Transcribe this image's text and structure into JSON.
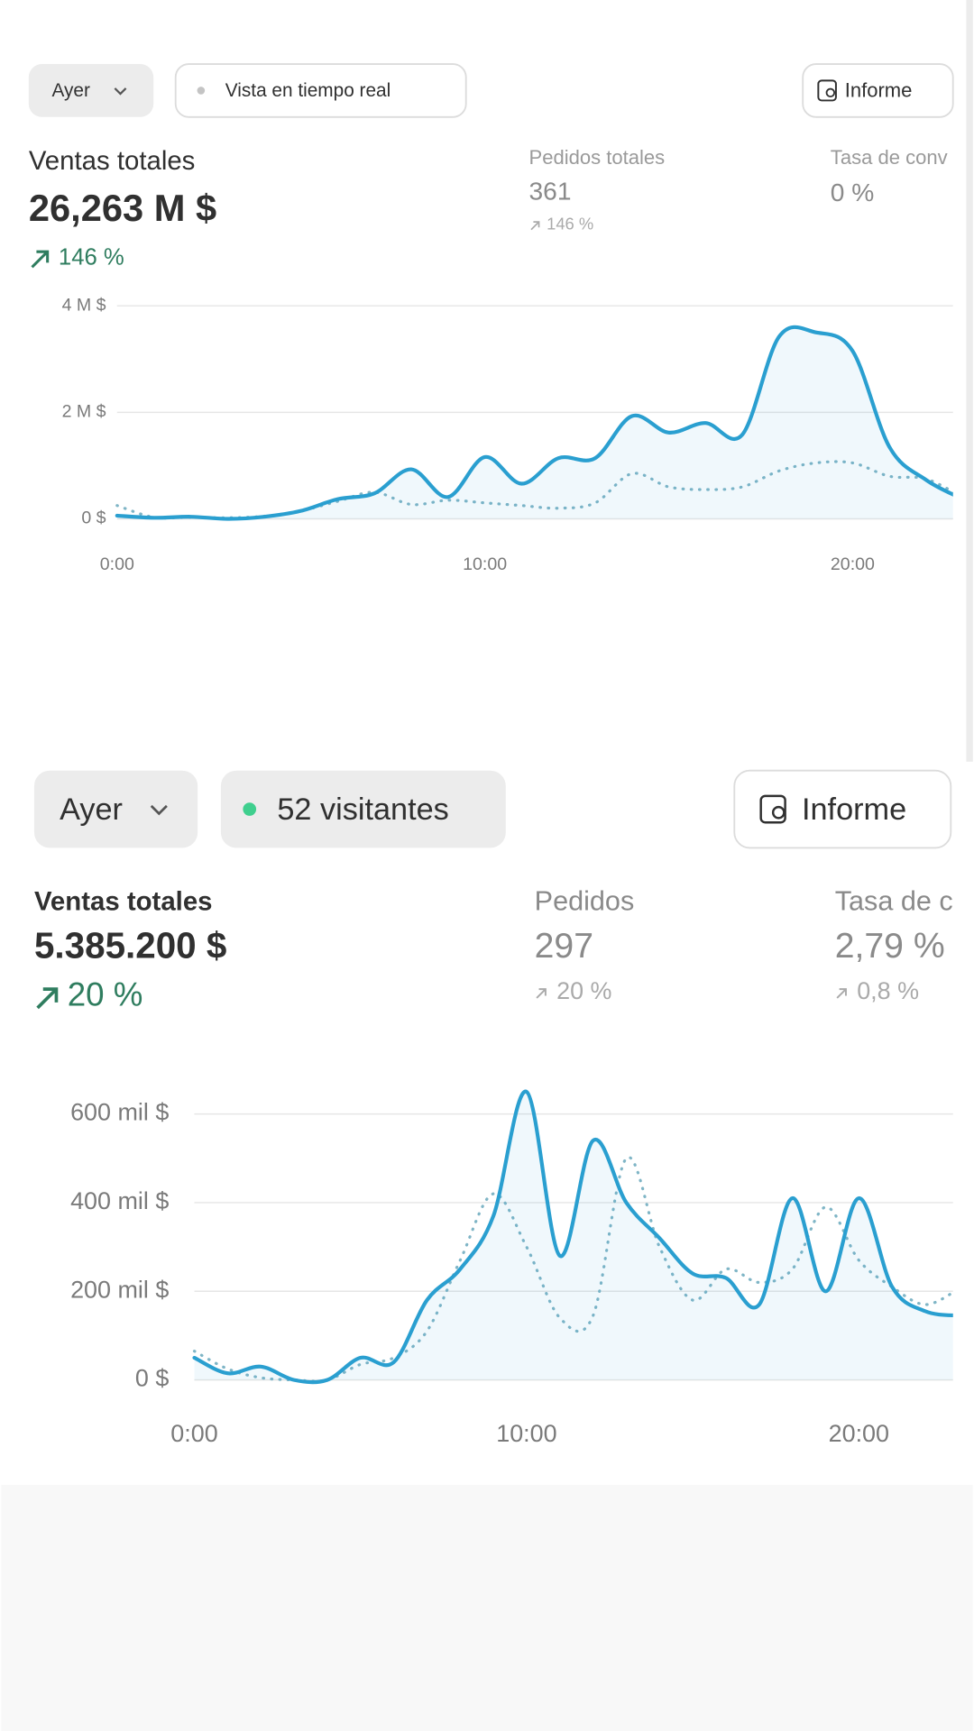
{
  "panels": [
    {
      "toolbar": {
        "period": "Ayer",
        "live": "Vista en tiempo real",
        "report": "Informe"
      },
      "metrics": [
        {
          "label": "Ventas totales",
          "value": "26,263 M $",
          "change": "146 %"
        },
        {
          "label": "Pedidos totales",
          "value": "361",
          "change": "146 %"
        },
        {
          "label": "Tasa de conv",
          "value": "0 %"
        }
      ]
    },
    {
      "toolbar": {
        "period": "Ayer",
        "live": "52 visitantes",
        "report": "Informe"
      },
      "metrics": [
        {
          "label": "Ventas totales",
          "value": "5.385.200 $",
          "change": "20 %"
        },
        {
          "label": "Pedidos",
          "value": "297",
          "change": "20 %"
        },
        {
          "label": "Tasa de c",
          "value": "2,79 %",
          "change": "0,8 %"
        }
      ]
    }
  ],
  "chart_data": [
    {
      "type": "line",
      "x": [
        0,
        1,
        2,
        3,
        4,
        5,
        6,
        7,
        8,
        9,
        10,
        11,
        12,
        13,
        14,
        15,
        16,
        17,
        18,
        19,
        20,
        21,
        22,
        23
      ],
      "xlim": [
        0,
        23
      ],
      "xticks": [
        {
          "value": 0,
          "label": "0:00"
        },
        {
          "value": 10,
          "label": "10:00"
        },
        {
          "value": 20,
          "label": "20:00"
        }
      ],
      "ylim": [
        0,
        4000000
      ],
      "yticks": [
        {
          "value": 0,
          "label": "0 $"
        },
        {
          "value": 2000000,
          "label": "2 M $"
        },
        {
          "value": 4000000,
          "label": "4 M $"
        }
      ],
      "grid": true,
      "series": [
        {
          "color": "#2a9fd0",
          "style": "solid",
          "fill": true,
          "values": [
            60000,
            20000,
            40000,
            0,
            40000,
            150000,
            370000,
            480000,
            930000,
            410000,
            1160000,
            660000,
            1140000,
            1140000,
            1930000,
            1620000,
            1800000,
            1580000,
            3420000,
            3500000,
            3150000,
            1350000,
            730000,
            370000
          ]
        },
        {
          "color": "#7fb5c6",
          "style": "dotted",
          "fill": false,
          "values": [
            250000,
            30000,
            30000,
            20000,
            50000,
            150000,
            330000,
            500000,
            270000,
            350000,
            300000,
            250000,
            200000,
            300000,
            850000,
            600000,
            550000,
            600000,
            900000,
            1050000,
            1050000,
            800000,
            750000,
            400000
          ]
        }
      ]
    },
    {
      "type": "line",
      "x": [
        0,
        1,
        2,
        3,
        4,
        5,
        6,
        7,
        8,
        9,
        10,
        11,
        12,
        13,
        14,
        15,
        16,
        17,
        18,
        19,
        20,
        21,
        22,
        23
      ],
      "xlim": [
        0,
        23
      ],
      "xticks": [
        {
          "value": 0,
          "label": "0:00"
        },
        {
          "value": 10,
          "label": "10:00"
        },
        {
          "value": 20,
          "label": "20:00"
        }
      ],
      "ylim": [
        0,
        650000
      ],
      "yticks": [
        {
          "value": 0,
          "label": "0 $"
        },
        {
          "value": 200000,
          "label": "200 mil $"
        },
        {
          "value": 400000,
          "label": "400 mil $"
        },
        {
          "value": 600000,
          "label": "600 mil $"
        }
      ],
      "grid": true,
      "series": [
        {
          "color": "#2a9fd0",
          "style": "solid",
          "fill": true,
          "values": [
            50000,
            15000,
            30000,
            0,
            0,
            50000,
            40000,
            180000,
            250000,
            370000,
            650000,
            280000,
            540000,
            400000,
            320000,
            240000,
            230000,
            170000,
            410000,
            200000,
            410000,
            210000,
            155000,
            145000
          ]
        },
        {
          "color": "#7fb5c6",
          "style": "dotted",
          "fill": false,
          "values": [
            65000,
            25000,
            5000,
            0,
            0,
            35000,
            50000,
            110000,
            270000,
            420000,
            300000,
            140000,
            145000,
            500000,
            300000,
            180000,
            250000,
            220000,
            250000,
            390000,
            270000,
            210000,
            170000,
            205000
          ]
        }
      ]
    }
  ]
}
